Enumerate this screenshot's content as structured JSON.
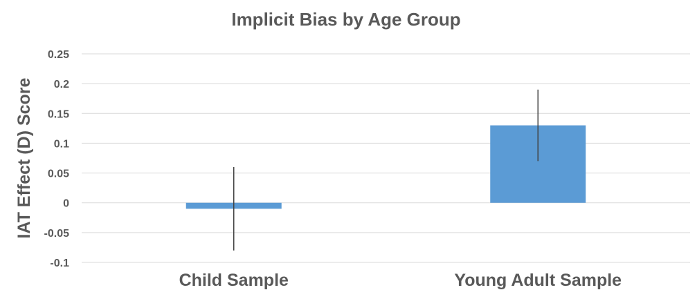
{
  "chart_data": {
    "type": "bar",
    "title": "Implicit Bias by Age Group",
    "xlabel": "",
    "ylabel": "IAT Effect (D) Score",
    "categories": [
      "Child Sample",
      "Young Adult Sample"
    ],
    "values": [
      -0.01,
      0.13
    ],
    "error_bars": [
      [
        -0.08,
        0.06
      ],
      [
        0.07,
        0.19
      ]
    ],
    "ylim": [
      -0.1,
      0.25
    ],
    "yticks": [
      -0.1,
      -0.05,
      0,
      0.05,
      0.1,
      0.15,
      0.2,
      0.25
    ],
    "ytick_labels": [
      "-0.1",
      "-0.05",
      "0",
      "0.05",
      "0.1",
      "0.15",
      "0.2",
      "0.25"
    ],
    "grid": true,
    "bar_color": "#5b9bd5",
    "error_bar_color": "#404040"
  }
}
